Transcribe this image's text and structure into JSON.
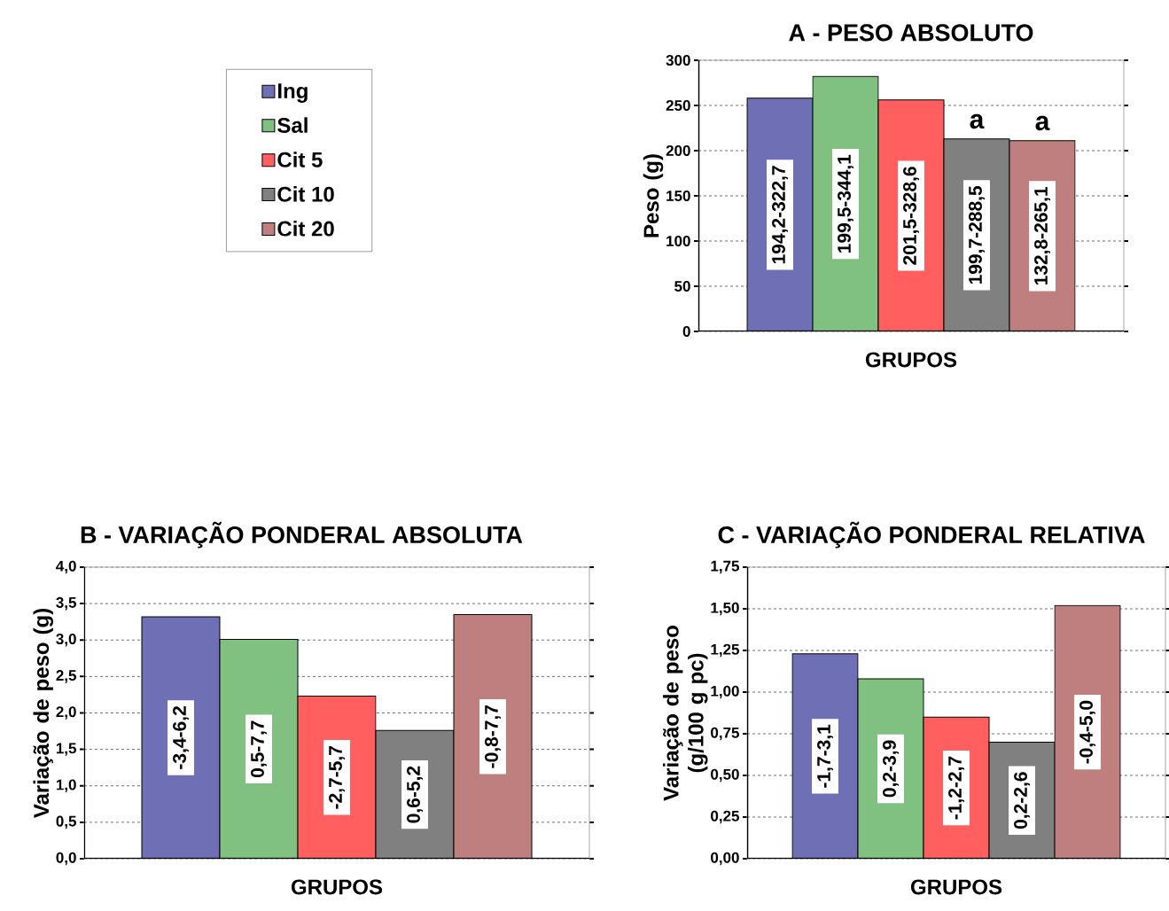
{
  "chart_data": [
    {
      "type": "bar",
      "title": "A - PESO ABSOLUTO",
      "xlabel": "GRUPOS",
      "ylabel": "Peso (g)",
      "categories": [
        null
      ],
      "series": [
        {
          "name": "Ing",
          "color": "#6f6fb5",
          "values": [
            258
          ],
          "value_labels": [
            "194,2-322,7"
          ]
        },
        {
          "name": "Sal",
          "color": "#80c080",
          "values": [
            282
          ],
          "value_labels": [
            "199,5-344,1"
          ]
        },
        {
          "name": "Cit 5",
          "color": "#ff5f5f",
          "values": [
            256
          ],
          "value_labels": [
            "201,5-328,6"
          ]
        },
        {
          "name": "Cit 10",
          "color": "#808080",
          "values": [
            213
          ],
          "value_labels": [
            "199,7-288,5"
          ]
        },
        {
          "name": "Cit 20",
          "color": "#c07f7f",
          "values": [
            211
          ],
          "value_labels": [
            "132,8-265,1"
          ]
        }
      ],
      "ylim": [
        0,
        300
      ],
      "yticks": [
        0,
        50,
        100,
        150,
        200,
        250,
        300
      ],
      "grid": "y",
      "legend": "left",
      "annotations": [
        "a",
        "a"
      ]
    },
    {
      "type": "bar",
      "title": "B - VARIAÇÃO PONDERAL ABSOLUTA",
      "xlabel": "GRUPOS",
      "ylabel": "Variação de peso (g)",
      "categories": [
        null
      ],
      "series": [
        {
          "color": "#6f6fb5",
          "values": [
            3.32
          ],
          "value_labels": [
            "-3,4-6,2"
          ]
        },
        {
          "color": "#80c080",
          "values": [
            3.01
          ],
          "value_labels": [
            "0,5-7,7"
          ]
        },
        {
          "color": "#ff5f5f",
          "values": [
            2.23
          ],
          "value_labels": [
            "-2,7-5,7"
          ]
        },
        {
          "color": "#808080",
          "values": [
            1.76
          ],
          "value_labels": [
            "0,6-5,2"
          ]
        },
        {
          "color": "#c07f7f",
          "values": [
            3.35
          ],
          "value_labels": [
            "-0,8-7,7"
          ]
        }
      ],
      "ylim": [
        0,
        4
      ],
      "yticks": [
        {
          "value": 0,
          "label": "0,0"
        },
        {
          "value": 0.5,
          "label": "0,5"
        },
        {
          "value": 1,
          "label": "1,0"
        },
        {
          "value": 1.5,
          "label": "1,5"
        },
        {
          "value": 2,
          "label": "2,0"
        },
        {
          "value": 2.5,
          "label": "2,5"
        },
        {
          "value": 3,
          "label": "3,0"
        },
        {
          "value": 3.5,
          "label": "3,5"
        },
        {
          "value": 4,
          "label": "4,0"
        }
      ],
      "grid": "y"
    },
    {
      "type": "bar",
      "title": "C - VARIAÇÃO PONDERAL RELATIVA",
      "xlabel": "GRUPOS",
      "ylabel": "Variação de peso (g/100 g pc)",
      "categories": [
        null
      ],
      "series": [
        {
          "color": "#6f6fb5",
          "values": [
            1.23
          ],
          "value_labels": [
            "-1,7-3,1"
          ]
        },
        {
          "color": "#80c080",
          "values": [
            1.08
          ],
          "value_labels": [
            "0,2-3,9"
          ]
        },
        {
          "color": "#ff5f5f",
          "values": [
            0.85
          ],
          "value_labels": [
            "-1,2-2,7"
          ]
        },
        {
          "color": "#808080",
          "values": [
            0.7
          ],
          "value_labels": [
            "0,2-2,6"
          ]
        },
        {
          "color": "#c07f7f",
          "values": [
            1.52
          ],
          "value_labels": [
            "-0,4-5,0"
          ]
        }
      ],
      "ylim": [
        0,
        1.75
      ],
      "yticks": [
        {
          "value": 0,
          "label": "0,00"
        },
        {
          "value": 0.25,
          "label": "0,25"
        },
        {
          "value": 0.5,
          "label": "0,50"
        },
        {
          "value": 0.75,
          "label": "0,75"
        },
        {
          "value": 1,
          "label": "1,00"
        },
        {
          "value": 1.25,
          "label": "1,25"
        },
        {
          "value": 1.5,
          "label": "1,50"
        },
        {
          "value": 1.75,
          "label": "1,75"
        }
      ],
      "grid": "y"
    }
  ]
}
